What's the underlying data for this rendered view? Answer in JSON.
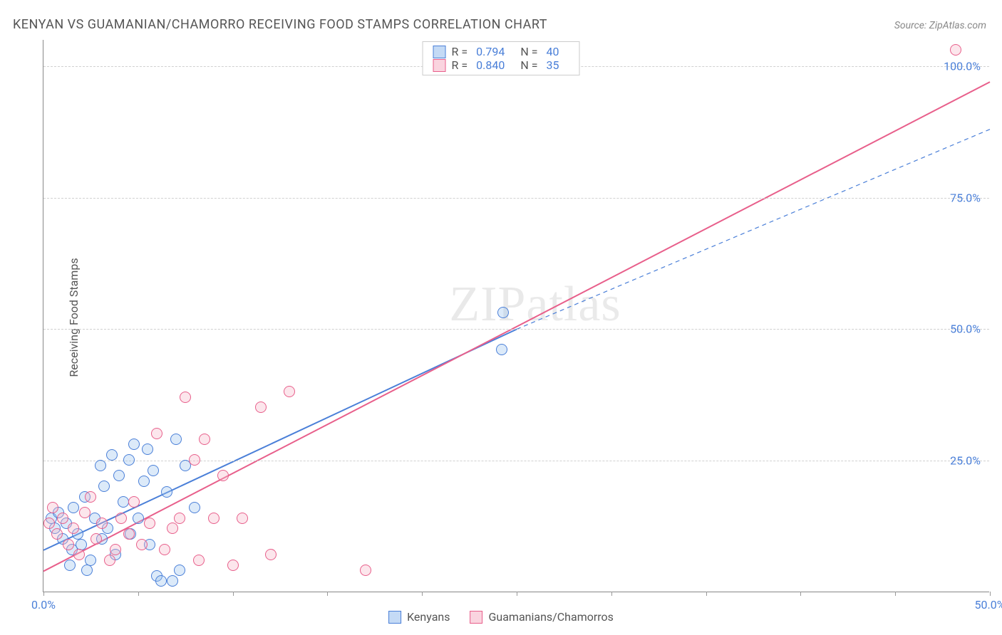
{
  "title": "KENYAN VS GUAMANIAN/CHAMORRO RECEIVING FOOD STAMPS CORRELATION CHART",
  "source": "Source: ZipAtlas.com",
  "y_axis_label": "Receiving Food Stamps",
  "watermark": "ZIPatlas",
  "chart": {
    "type": "scatter",
    "xlim": [
      0,
      50
    ],
    "ylim": [
      0,
      105
    ],
    "x_ticks": [
      0,
      5,
      10,
      15,
      20,
      25,
      30,
      35,
      40,
      45,
      50
    ],
    "x_tick_labels": {
      "0": "0.0%",
      "50": "50.0%"
    },
    "y_ticks": [
      25,
      50,
      75,
      100
    ],
    "y_tick_labels": {
      "25": "25.0%",
      "50": "50.0%",
      "75": "75.0%",
      "100": "100.0%"
    },
    "background_color": "#ffffff",
    "grid_color": "#d0d0d0",
    "marker_radius": 8,
    "marker_stroke_width": 1.5,
    "marker_fill_opacity": 0.35,
    "series": [
      {
        "name": "Kenyans",
        "color_fill": "#9cc2ef",
        "color_stroke": "#4a7fd8",
        "r": "0.794",
        "n": "40",
        "trend_line": {
          "x1": 0,
          "y1": 8,
          "x2": 25,
          "y2": 50,
          "dash": null,
          "width": 2
        },
        "trend_line_ext": {
          "x1": 25,
          "y1": 50,
          "x2": 50,
          "y2": 88,
          "dash": "6,5",
          "width": 1.2
        },
        "points": [
          [
            0.4,
            14
          ],
          [
            0.6,
            12
          ],
          [
            0.8,
            15
          ],
          [
            1.0,
            10
          ],
          [
            1.2,
            13
          ],
          [
            1.5,
            8
          ],
          [
            1.6,
            16
          ],
          [
            1.8,
            11
          ],
          [
            2.0,
            9
          ],
          [
            2.2,
            18
          ],
          [
            2.5,
            6
          ],
          [
            2.7,
            14
          ],
          [
            3.0,
            24
          ],
          [
            3.2,
            20
          ],
          [
            3.4,
            12
          ],
          [
            3.6,
            26
          ],
          [
            3.8,
            7
          ],
          [
            4.0,
            22
          ],
          [
            4.2,
            17
          ],
          [
            4.5,
            25
          ],
          [
            4.8,
            28
          ],
          [
            5.0,
            14
          ],
          [
            5.3,
            21
          ],
          [
            5.5,
            27
          ],
          [
            5.8,
            23
          ],
          [
            6.0,
            3
          ],
          [
            6.2,
            2
          ],
          [
            6.5,
            19
          ],
          [
            7.0,
            29
          ],
          [
            7.2,
            4
          ],
          [
            7.5,
            24
          ],
          [
            8.0,
            16
          ],
          [
            1.4,
            5
          ],
          [
            2.3,
            4
          ],
          [
            3.1,
            10
          ],
          [
            4.6,
            11
          ],
          [
            5.6,
            9
          ],
          [
            6.8,
            2
          ],
          [
            24.3,
            53
          ],
          [
            24.2,
            46
          ]
        ]
      },
      {
        "name": "Guamanians/Chamorros",
        "color_fill": "#f6b8c9",
        "color_stroke": "#e85f8b",
        "r": "0.840",
        "n": "35",
        "trend_line": {
          "x1": 0,
          "y1": 4,
          "x2": 50,
          "y2": 97,
          "dash": null,
          "width": 2
        },
        "trend_line_ext": null,
        "points": [
          [
            0.3,
            13
          ],
          [
            0.7,
            11
          ],
          [
            1.0,
            14
          ],
          [
            1.3,
            9
          ],
          [
            1.6,
            12
          ],
          [
            1.9,
            7
          ],
          [
            2.2,
            15
          ],
          [
            2.5,
            18
          ],
          [
            2.8,
            10
          ],
          [
            3.1,
            13
          ],
          [
            3.5,
            6
          ],
          [
            3.8,
            8
          ],
          [
            4.1,
            14
          ],
          [
            4.5,
            11
          ],
          [
            4.8,
            17
          ],
          [
            5.2,
            9
          ],
          [
            5.6,
            13
          ],
          [
            6.0,
            30
          ],
          [
            6.4,
            8
          ],
          [
            6.8,
            12
          ],
          [
            7.2,
            14
          ],
          [
            7.5,
            37
          ],
          [
            8.0,
            25
          ],
          [
            8.2,
            6
          ],
          [
            8.5,
            29
          ],
          [
            9.0,
            14
          ],
          [
            9.5,
            22
          ],
          [
            10.0,
            5
          ],
          [
            11.5,
            35
          ],
          [
            13.0,
            38
          ],
          [
            10.5,
            14
          ],
          [
            12.0,
            7
          ],
          [
            17.0,
            4
          ],
          [
            48.2,
            103
          ],
          [
            0.5,
            16
          ]
        ]
      }
    ]
  },
  "legend_bottom": {
    "items": [
      {
        "label": "Kenyans",
        "fill": "#9cc2ef",
        "stroke": "#4a7fd8"
      },
      {
        "label": "Guamanians/Chamorros",
        "fill": "#f6b8c9",
        "stroke": "#e85f8b"
      }
    ]
  }
}
